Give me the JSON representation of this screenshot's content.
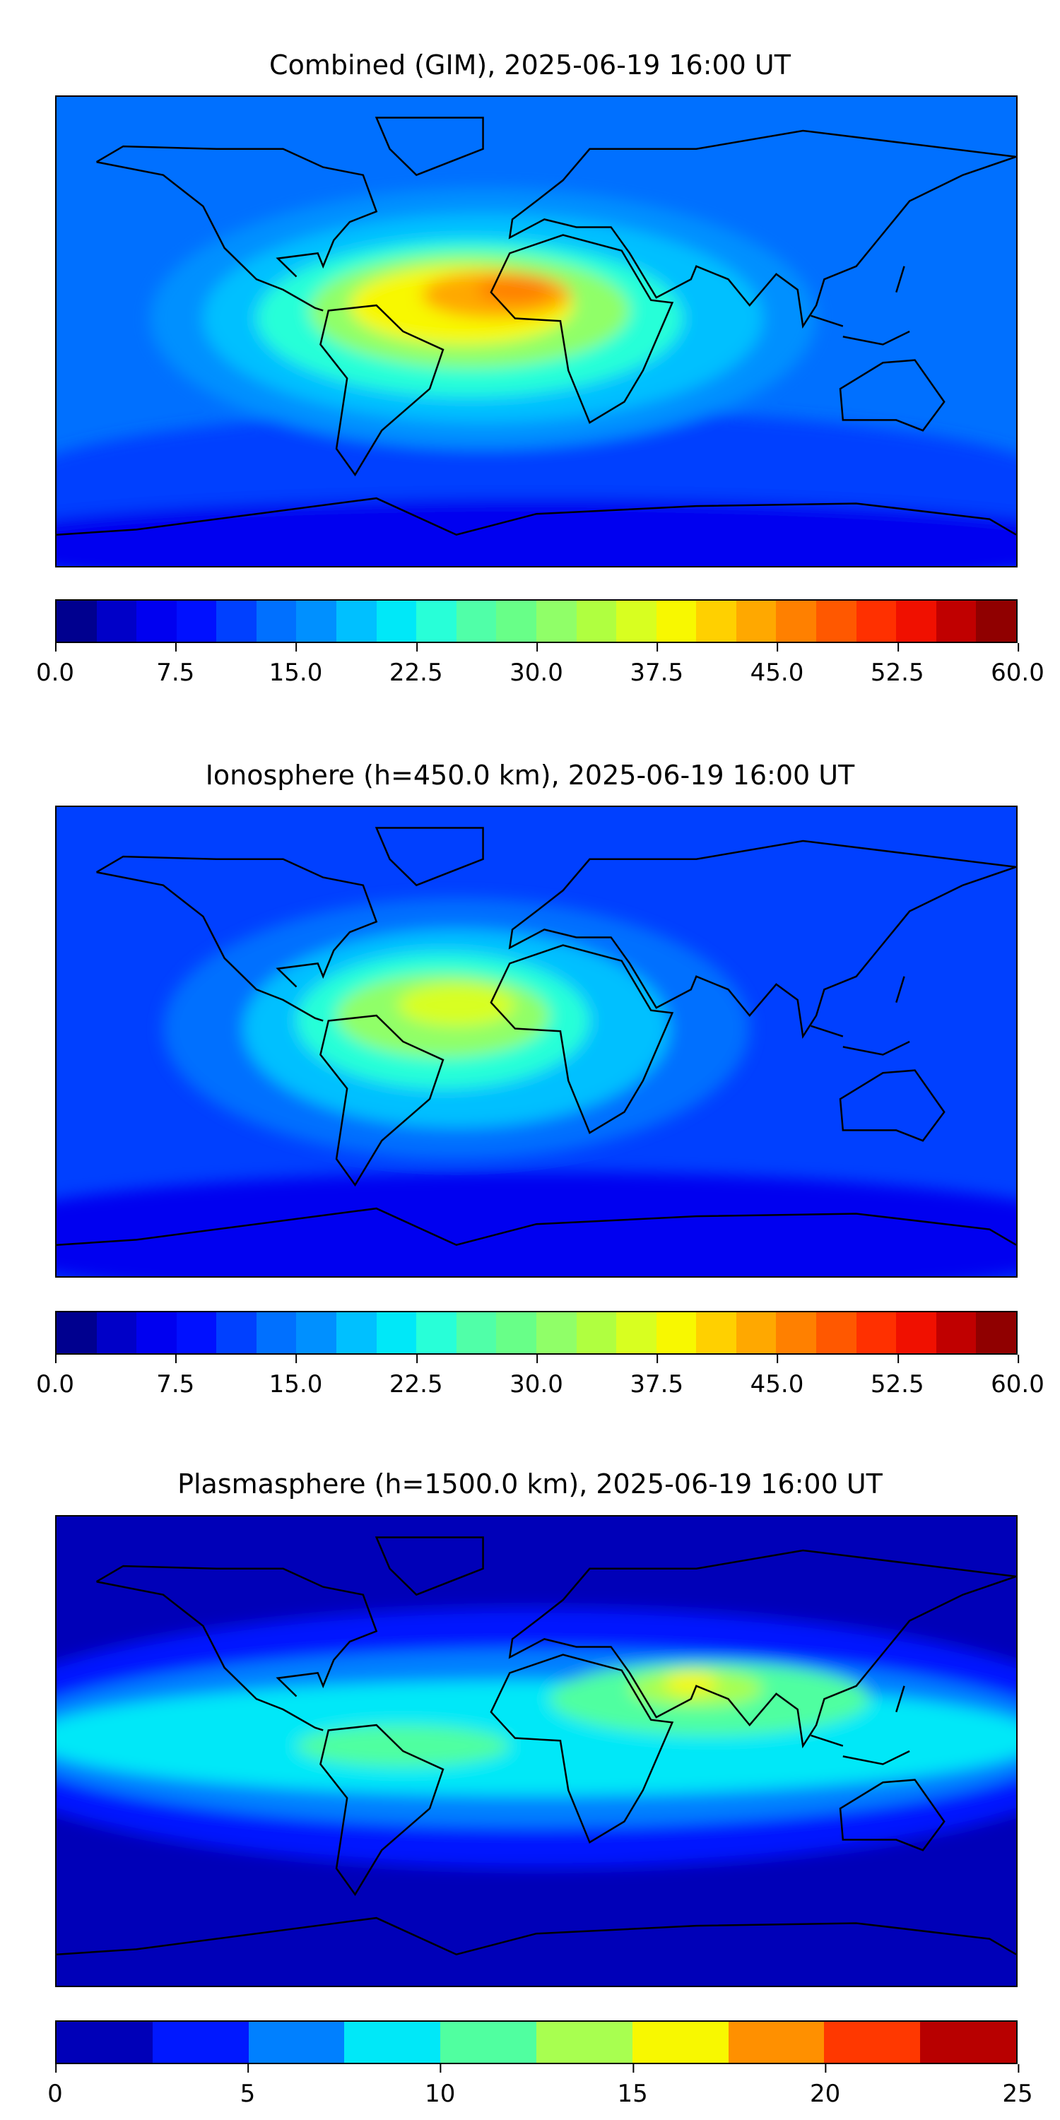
{
  "chart_data": [
    {
      "type": "heatmap",
      "title": "Combined (GIM), 2025-06-19 16:00 UT",
      "colorbar": {
        "range": [
          0,
          60
        ],
        "step": 2.5,
        "ticks": [
          "0.0",
          "7.5",
          "15.0",
          "22.5",
          "30.0",
          "37.5",
          "45.0",
          "52.5",
          "60.0"
        ],
        "colors": [
          "#00008f",
          "#0000c8",
          "#0000f0",
          "#0010ff",
          "#0040ff",
          "#0070ff",
          "#0090ff",
          "#00c0ff",
          "#00e8f8",
          "#28ffd8",
          "#50ffa8",
          "#68ff88",
          "#90ff68",
          "#b0ff40",
          "#d8ff20",
          "#f8f800",
          "#ffd000",
          "#ffa800",
          "#ff8000",
          "#ff5800",
          "#ff3000",
          "#f01000",
          "#c00000",
          "#900000"
        ]
      },
      "peak_region": "tropical Atlantic / Africa",
      "approx_max": 47.5
    },
    {
      "type": "heatmap",
      "title": "Ionosphere  (h=450.0 km), 2025-06-19 16:00 UT",
      "colorbar": {
        "range": [
          0,
          60
        ],
        "step": 2.5,
        "ticks": [
          "0.0",
          "7.5",
          "15.0",
          "22.5",
          "30.0",
          "37.5",
          "45.0",
          "52.5",
          "60.0"
        ],
        "colors": [
          "#00008f",
          "#0000c8",
          "#0000f0",
          "#0010ff",
          "#0040ff",
          "#0070ff",
          "#0090ff",
          "#00c0ff",
          "#00e8f8",
          "#28ffd8",
          "#50ffa8",
          "#68ff88",
          "#90ff68",
          "#b0ff40",
          "#d8ff20",
          "#f8f800",
          "#ffd000",
          "#ffa800",
          "#ff8000",
          "#ff5800",
          "#ff3000",
          "#f01000",
          "#c00000",
          "#900000"
        ]
      },
      "peak_region": "South America / Atlantic",
      "approx_max": 40
    },
    {
      "type": "heatmap",
      "title": "Plasmasphere (h=1500.0 km), 2025-06-19 16:00 UT",
      "colorbar": {
        "range": [
          0,
          25
        ],
        "step": 2.5,
        "ticks": [
          "0",
          "5",
          "10",
          "15",
          "20",
          "25"
        ],
        "colors": [
          "#0000b8",
          "#0018ff",
          "#0080ff",
          "#00e8f8",
          "#50ffa0",
          "#a8ff50",
          "#f8f800",
          "#ff9000",
          "#ff3800",
          "#b80000"
        ]
      },
      "peak_region": "Arabia / India",
      "approx_max": 17.5
    }
  ]
}
